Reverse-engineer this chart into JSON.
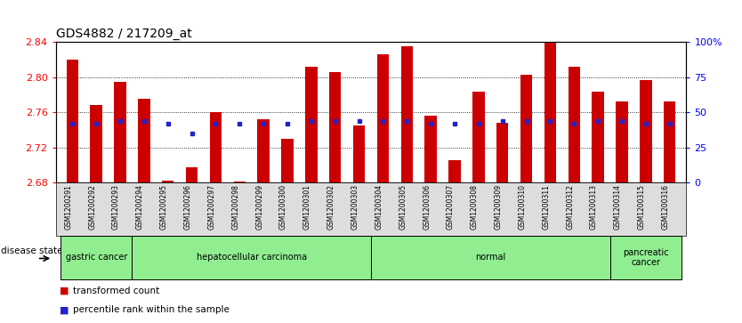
{
  "title": "GDS4882 / 217209_at",
  "samples": [
    "GSM1200291",
    "GSM1200292",
    "GSM1200293",
    "GSM1200294",
    "GSM1200295",
    "GSM1200296",
    "GSM1200297",
    "GSM1200298",
    "GSM1200299",
    "GSM1200300",
    "GSM1200301",
    "GSM1200302",
    "GSM1200303",
    "GSM1200304",
    "GSM1200305",
    "GSM1200306",
    "GSM1200307",
    "GSM1200308",
    "GSM1200309",
    "GSM1200310",
    "GSM1200311",
    "GSM1200312",
    "GSM1200313",
    "GSM1200314",
    "GSM1200315",
    "GSM1200316"
  ],
  "transformed_count": [
    2.82,
    2.768,
    2.795,
    2.775,
    2.682,
    2.697,
    2.76,
    2.681,
    2.752,
    2.73,
    2.812,
    2.806,
    2.745,
    2.826,
    2.835,
    2.756,
    2.705,
    2.783,
    2.748,
    2.803,
    2.84,
    2.812,
    2.783,
    2.772,
    2.797,
    2.772
  ],
  "percentile_rank_pct": [
    42,
    42,
    44,
    44,
    42,
    35,
    42,
    42,
    42,
    42,
    44,
    44,
    44,
    44,
    44,
    42,
    42,
    42,
    44,
    44,
    44,
    42,
    44,
    44,
    42,
    42
  ],
  "ylim_left": [
    2.68,
    2.84
  ],
  "ylim_right": [
    0,
    100
  ],
  "yticks_left": [
    2.68,
    2.72,
    2.76,
    2.8,
    2.84
  ],
  "yticks_right": [
    0,
    25,
    50,
    75,
    100
  ],
  "ytick_labels_right": [
    "0",
    "25",
    "50",
    "75",
    "100%"
  ],
  "bar_color": "#cc0000",
  "percentile_color": "#2222cc",
  "bar_width": 0.5,
  "group_boundaries": [
    {
      "label": "gastric cancer",
      "start": 0,
      "end": 3
    },
    {
      "label": "hepatocellular carcinoma",
      "start": 3,
      "end": 13
    },
    {
      "label": "normal",
      "start": 13,
      "end": 23
    },
    {
      "label": "pancreatic\ncancer",
      "start": 23,
      "end": 26
    }
  ],
  "group_color": "#90ee90",
  "disease_state_label": "disease state",
  "legend_items": [
    {
      "label": "transformed count",
      "color": "#cc0000"
    },
    {
      "label": "percentile rank within the sample",
      "color": "#2222cc"
    }
  ],
  "background_color": "#ffffff",
  "title_fontsize": 10,
  "axis_fontsize": 8,
  "tick_fontsize": 7
}
